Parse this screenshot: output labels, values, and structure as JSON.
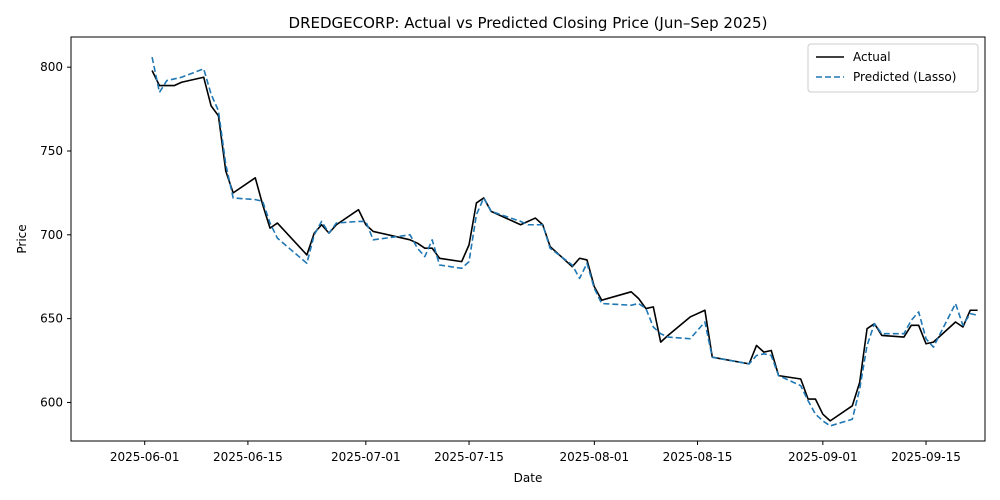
{
  "chart_data": {
    "type": "line",
    "title": "DREDGECORP: Actual vs Predicted Closing Price (Jun–Sep 2025)",
    "xlabel": "Date",
    "ylabel": "Price",
    "x_ticks": [
      "2025-06-01",
      "2025-06-15",
      "2025-07-01",
      "2025-07-15",
      "2025-08-01",
      "2025-08-15",
      "2025-09-01",
      "2025-09-15"
    ],
    "y_ticks": [
      600,
      650,
      700,
      750,
      800
    ],
    "xlim": [
      "2025-05-22",
      "2025-09-23"
    ],
    "ylim": [
      577,
      818
    ],
    "grid": false,
    "legend_position": "top-right",
    "series": [
      {
        "name": "Actual",
        "color": "#000000",
        "style": "solid",
        "points": [
          [
            "2025-06-02",
            798
          ],
          [
            "2025-06-03",
            789
          ],
          [
            "2025-06-04",
            789
          ],
          [
            "2025-06-05",
            789
          ],
          [
            "2025-06-06",
            791
          ],
          [
            "2025-06-09",
            794
          ],
          [
            "2025-06-10",
            777
          ],
          [
            "2025-06-11",
            771
          ],
          [
            "2025-06-12",
            738
          ],
          [
            "2025-06-13",
            725
          ],
          [
            "2025-06-16",
            734
          ],
          [
            "2025-06-17",
            718
          ],
          [
            "2025-06-18",
            704
          ],
          [
            "2025-06-19",
            707
          ],
          [
            "2025-06-23",
            688
          ],
          [
            "2025-06-24",
            701
          ],
          [
            "2025-06-25",
            706
          ],
          [
            "2025-06-26",
            701
          ],
          [
            "2025-06-27",
            706
          ],
          [
            "2025-06-30",
            715
          ],
          [
            "2025-07-01",
            706
          ],
          [
            "2025-07-02",
            702
          ],
          [
            "2025-07-07",
            697
          ],
          [
            "2025-07-08",
            695
          ],
          [
            "2025-07-09",
            692
          ],
          [
            "2025-07-10",
            692
          ],
          [
            "2025-07-11",
            686
          ],
          [
            "2025-07-14",
            684
          ],
          [
            "2025-07-15",
            694
          ],
          [
            "2025-07-16",
            719
          ],
          [
            "2025-07-17",
            722
          ],
          [
            "2025-07-18",
            714
          ],
          [
            "2025-07-22",
            706
          ],
          [
            "2025-07-23",
            708
          ],
          [
            "2025-07-24",
            710
          ],
          [
            "2025-07-25",
            706
          ],
          [
            "2025-07-26",
            693
          ],
          [
            "2025-07-29",
            681
          ],
          [
            "2025-07-30",
            686
          ],
          [
            "2025-07-31",
            685
          ],
          [
            "2025-08-01",
            669
          ],
          [
            "2025-08-02",
            661
          ],
          [
            "2025-08-06",
            666
          ],
          [
            "2025-08-07",
            662
          ],
          [
            "2025-08-08",
            656
          ],
          [
            "2025-08-09",
            657
          ],
          [
            "2025-08-10",
            636
          ],
          [
            "2025-08-11",
            640
          ],
          [
            "2025-08-14",
            651
          ],
          [
            "2025-08-16",
            655
          ],
          [
            "2025-08-17",
            627
          ],
          [
            "2025-08-22",
            623
          ],
          [
            "2025-08-23",
            634
          ],
          [
            "2025-08-24",
            630
          ],
          [
            "2025-08-25",
            631
          ],
          [
            "2025-08-26",
            616
          ],
          [
            "2025-08-29",
            614
          ],
          [
            "2025-08-30",
            602
          ],
          [
            "2025-08-31",
            602
          ],
          [
            "2025-09-01",
            593
          ],
          [
            "2025-09-02",
            589
          ],
          [
            "2025-09-05",
            598
          ],
          [
            "2025-09-06",
            612
          ],
          [
            "2025-09-07",
            644
          ],
          [
            "2025-09-08",
            647
          ],
          [
            "2025-09-09",
            640
          ],
          [
            "2025-09-12",
            639
          ],
          [
            "2025-09-13",
            646
          ],
          [
            "2025-09-14",
            646
          ],
          [
            "2025-09-15",
            635
          ],
          [
            "2025-09-16",
            636
          ],
          [
            "2025-09-19",
            648
          ],
          [
            "2025-09-20",
            645
          ],
          [
            "2025-09-21",
            655
          ],
          [
            "2025-09-22",
            655
          ]
        ]
      },
      {
        "name": "Predicted (Lasso)",
        "color": "#1f77b4",
        "style": "dashed",
        "points": [
          [
            "2025-06-02",
            806
          ],
          [
            "2025-06-03",
            785
          ],
          [
            "2025-06-04",
            792
          ],
          [
            "2025-06-05",
            793
          ],
          [
            "2025-06-06",
            794
          ],
          [
            "2025-06-09",
            799
          ],
          [
            "2025-06-10",
            784
          ],
          [
            "2025-06-11",
            774
          ],
          [
            "2025-06-12",
            742
          ],
          [
            "2025-06-13",
            722
          ],
          [
            "2025-06-16",
            721
          ],
          [
            "2025-06-17",
            720
          ],
          [
            "2025-06-18",
            707
          ],
          [
            "2025-06-19",
            698
          ],
          [
            "2025-06-23",
            683
          ],
          [
            "2025-06-24",
            700
          ],
          [
            "2025-06-25",
            708
          ],
          [
            "2025-06-26",
            701
          ],
          [
            "2025-06-27",
            707
          ],
          [
            "2025-06-30",
            708
          ],
          [
            "2025-07-01",
            708
          ],
          [
            "2025-07-02",
            697
          ],
          [
            "2025-07-07",
            700
          ],
          [
            "2025-07-08",
            692
          ],
          [
            "2025-07-09",
            687
          ],
          [
            "2025-07-10",
            697
          ],
          [
            "2025-07-11",
            682
          ],
          [
            "2025-07-14",
            680
          ],
          [
            "2025-07-15",
            684
          ],
          [
            "2025-07-16",
            712
          ],
          [
            "2025-07-17",
            722
          ],
          [
            "2025-07-18",
            714
          ],
          [
            "2025-07-22",
            708
          ],
          [
            "2025-07-23",
            706
          ],
          [
            "2025-07-24",
            706
          ],
          [
            "2025-07-25",
            706
          ],
          [
            "2025-07-26",
            692
          ],
          [
            "2025-07-29",
            682
          ],
          [
            "2025-07-30",
            674
          ],
          [
            "2025-07-31",
            683
          ],
          [
            "2025-08-01",
            668
          ],
          [
            "2025-08-02",
            659
          ],
          [
            "2025-08-06",
            658
          ],
          [
            "2025-08-07",
            659
          ],
          [
            "2025-08-08",
            656
          ],
          [
            "2025-08-09",
            645
          ],
          [
            "2025-08-10",
            641
          ],
          [
            "2025-08-11",
            639
          ],
          [
            "2025-08-14",
            638
          ],
          [
            "2025-08-16",
            648
          ],
          [
            "2025-08-17",
            627
          ],
          [
            "2025-08-22",
            623
          ],
          [
            "2025-08-23",
            628
          ],
          [
            "2025-08-24",
            629
          ],
          [
            "2025-08-25",
            628
          ],
          [
            "2025-08-26",
            616
          ],
          [
            "2025-08-29",
            610
          ],
          [
            "2025-08-30",
            601
          ],
          [
            "2025-08-31",
            593
          ],
          [
            "2025-09-01",
            589
          ],
          [
            "2025-09-02",
            586
          ],
          [
            "2025-09-05",
            590
          ],
          [
            "2025-09-06",
            608
          ],
          [
            "2025-09-07",
            634
          ],
          [
            "2025-09-08",
            647
          ],
          [
            "2025-09-09",
            641
          ],
          [
            "2025-09-12",
            641
          ],
          [
            "2025-09-13",
            649
          ],
          [
            "2025-09-14",
            654
          ],
          [
            "2025-09-15",
            638
          ],
          [
            "2025-09-16",
            633
          ],
          [
            "2025-09-19",
            659
          ],
          [
            "2025-09-20",
            646
          ],
          [
            "2025-09-21",
            653
          ],
          [
            "2025-09-22",
            652
          ]
        ]
      }
    ]
  }
}
